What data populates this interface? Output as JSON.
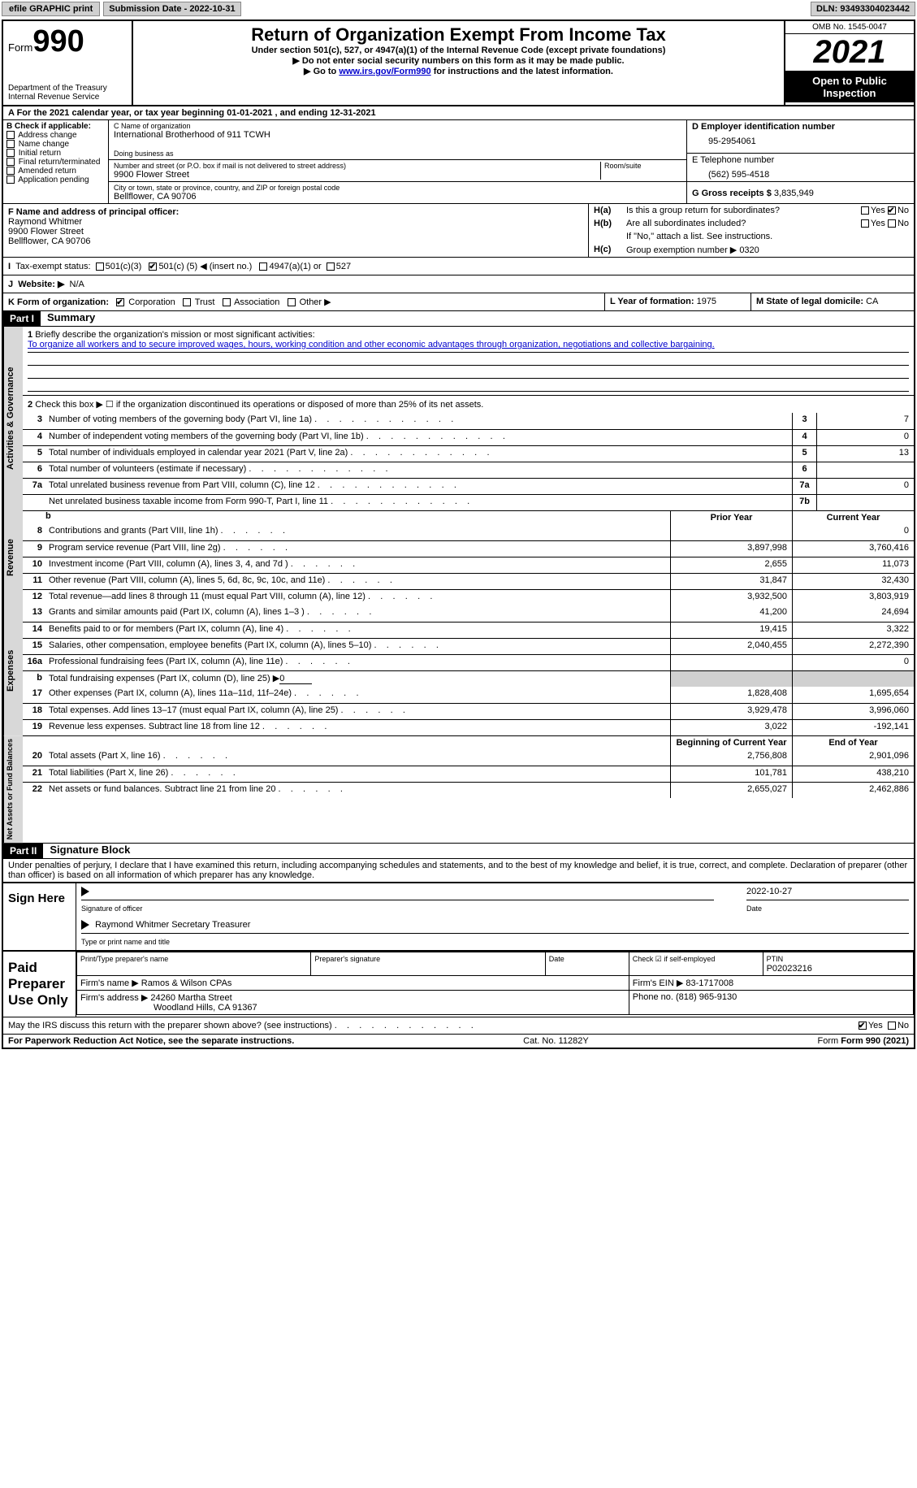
{
  "top": {
    "efile": "efile GRAPHIC print",
    "submission_label": "Submission Date - 2022-10-31",
    "dln_label": "DLN: 93493304023442"
  },
  "header": {
    "form_word": "Form",
    "form_num": "990",
    "dept": "Department of the Treasury",
    "irs": "Internal Revenue Service",
    "title": "Return of Organization Exempt From Income Tax",
    "sub": "Under section 501(c), 527, or 4947(a)(1) of the Internal Revenue Code (except private foundations)",
    "no_ssn": "▶ Do not enter social security numbers on this form as it may be made public.",
    "goto_pre": "▶ Go to ",
    "goto_link": "www.irs.gov/Form990",
    "goto_post": " for instructions and the latest information.",
    "omb": "OMB No. 1545-0047",
    "year": "2021",
    "open": "Open to Public Inspection"
  },
  "row_a": {
    "text": "A For the 2021 calendar year, or tax year beginning 01-01-2021    , and ending 12-31-2021"
  },
  "box_b": {
    "title": "B Check if applicable:",
    "opts": [
      "Address change",
      "Name change",
      "Initial return",
      "Final return/terminated",
      "Amended return",
      "Application pending"
    ]
  },
  "box_c": {
    "name_label": "C Name of organization",
    "name": "International Brotherhood of 911 TCWH",
    "dba_label": "Doing business as",
    "addr_label": "Number and street (or P.O. box if mail is not delivered to street address)",
    "room_label": "Room/suite",
    "addr": "9900 Flower Street",
    "city_label": "City or town, state or province, country, and ZIP or foreign postal code",
    "city": "Bellflower, CA  90706"
  },
  "box_d": {
    "ein_label": "D Employer identification number",
    "ein": "95-2954061",
    "phone_label": "E Telephone number",
    "phone": "(562) 595-4518",
    "gross_label": "G Gross receipts $",
    "gross": "3,835,949"
  },
  "box_f": {
    "label": "F  Name and address of principal officer:",
    "name": "Raymond Whitmer",
    "addr1": "9900 Flower Street",
    "addr2": "Bellflower, CA  90706"
  },
  "box_h": {
    "ha_label": "H(a)",
    "ha_text": "Is this a group return for subordinates?",
    "hb_label": "H(b)",
    "hb_text": "Are all subordinates included?",
    "hb_note": "If \"No,\" attach a list. See instructions.",
    "hc_label": "H(c)",
    "hc_text": "Group exemption number ▶",
    "hc_val": "0320",
    "yes": "Yes",
    "no": "No"
  },
  "tax_status": {
    "label": "Tax-exempt status:",
    "c3": "501(c)(3)",
    "c_pre": "501(c) (",
    "c_num": "5",
    "c_post": ") ◀ (insert no.)",
    "a1": "4947(a)(1) or",
    "s527": "527"
  },
  "row_j": {
    "label": "J",
    "text": "Website: ▶",
    "val": "N/A"
  },
  "row_k": {
    "label": "K Form of organization:",
    "corp": "Corporation",
    "trust": "Trust",
    "assoc": "Association",
    "other": "Other ▶"
  },
  "row_l": {
    "label": "L Year of formation:",
    "val": "1975"
  },
  "row_m": {
    "label": "M State of legal domicile:",
    "val": "CA"
  },
  "part1": {
    "tag": "Part I",
    "title": "Summary",
    "tab_gov": "Activities & Governance",
    "tab_rev": "Revenue",
    "tab_exp": "Expenses",
    "tab_net": "Net Assets or Fund Balances",
    "l1_label": "Briefly describe the organization's mission or most significant activities:",
    "l1_text": "To organize all workers and to secure improved wages, hours, working condition and other economic advantages through organization, negotiations and collective bargaining.",
    "l2": "Check this box ▶ ☐ if the organization discontinued its operations or disposed of more than 25% of its net assets.",
    "lines_gov": [
      {
        "n": "3",
        "d": "Number of voting members of the governing body (Part VI, line 1a)",
        "box": "3",
        "v": "7"
      },
      {
        "n": "4",
        "d": "Number of independent voting members of the governing body (Part VI, line 1b)",
        "box": "4",
        "v": "0"
      },
      {
        "n": "5",
        "d": "Total number of individuals employed in calendar year 2021 (Part V, line 2a)",
        "box": "5",
        "v": "13"
      },
      {
        "n": "6",
        "d": "Total number of volunteers (estimate if necessary)",
        "box": "6",
        "v": ""
      },
      {
        "n": "7a",
        "d": "Total unrelated business revenue from Part VIII, column (C), line 12",
        "box": "7a",
        "v": "0"
      },
      {
        "n": "",
        "d": "Net unrelated business taxable income from Form 990-T, Part I, line 11",
        "box": "7b",
        "v": ""
      }
    ],
    "col_prior": "Prior Year",
    "col_current": "Current Year",
    "lines_rev": [
      {
        "n": "8",
        "d": "Contributions and grants (Part VIII, line 1h)",
        "p": "",
        "c": "0"
      },
      {
        "n": "9",
        "d": "Program service revenue (Part VIII, line 2g)",
        "p": "3,897,998",
        "c": "3,760,416"
      },
      {
        "n": "10",
        "d": "Investment income (Part VIII, column (A), lines 3, 4, and 7d )",
        "p": "2,655",
        "c": "11,073"
      },
      {
        "n": "11",
        "d": "Other revenue (Part VIII, column (A), lines 5, 6d, 8c, 9c, 10c, and 11e)",
        "p": "31,847",
        "c": "32,430"
      },
      {
        "n": "12",
        "d": "Total revenue—add lines 8 through 11 (must equal Part VIII, column (A), line 12)",
        "p": "3,932,500",
        "c": "3,803,919"
      }
    ],
    "lines_exp": [
      {
        "n": "13",
        "d": "Grants and similar amounts paid (Part IX, column (A), lines 1–3 )",
        "p": "41,200",
        "c": "24,694"
      },
      {
        "n": "14",
        "d": "Benefits paid to or for members (Part IX, column (A), line 4)",
        "p": "19,415",
        "c": "3,322"
      },
      {
        "n": "15",
        "d": "Salaries, other compensation, employee benefits (Part IX, column (A), lines 5–10)",
        "p": "2,040,455",
        "c": "2,272,390"
      },
      {
        "n": "16a",
        "d": "Professional fundraising fees (Part IX, column (A), line 11e)",
        "p": "",
        "c": "0"
      }
    ],
    "line_b": {
      "n": "b",
      "d": "Total fundraising expenses (Part IX, column (D), line 25) ▶",
      "v": "0"
    },
    "lines_exp2": [
      {
        "n": "17",
        "d": "Other expenses (Part IX, column (A), lines 11a–11d, 11f–24e)",
        "p": "1,828,408",
        "c": "1,695,654"
      },
      {
        "n": "18",
        "d": "Total expenses. Add lines 13–17 (must equal Part IX, column (A), line 25)",
        "p": "3,929,478",
        "c": "3,996,060"
      },
      {
        "n": "19",
        "d": "Revenue less expenses. Subtract line 18 from line 12",
        "p": "3,022",
        "c": "-192,141"
      }
    ],
    "col_begin": "Beginning of Current Year",
    "col_end": "End of Year",
    "lines_net": [
      {
        "n": "20",
        "d": "Total assets (Part X, line 16)",
        "p": "2,756,808",
        "c": "2,901,096"
      },
      {
        "n": "21",
        "d": "Total liabilities (Part X, line 26)",
        "p": "101,781",
        "c": "438,210"
      },
      {
        "n": "22",
        "d": "Net assets or fund balances. Subtract line 21 from line 20",
        "p": "2,655,027",
        "c": "2,462,886"
      }
    ]
  },
  "part2": {
    "tag": "Part II",
    "title": "Signature Block",
    "decl": "Under penalties of perjury, I declare that I have examined this return, including accompanying schedules and statements, and to the best of my knowledge and belief, it is true, correct, and complete. Declaration of preparer (other than officer) is based on all information of which preparer has any knowledge.",
    "sign_here": "Sign Here",
    "sig_officer": "Signature of officer",
    "sig_date": "Date",
    "sig_date_val": "2022-10-27",
    "sig_name": "Raymond Whitmer  Secretary Treasurer",
    "sig_name_label": "Type or print name and title",
    "paid": "Paid Preparer Use Only",
    "prep_name_label": "Print/Type preparer's name",
    "prep_sig_label": "Preparer's signature",
    "prep_date_label": "Date",
    "check_self": "Check ☑ if self-employed",
    "ptin_label": "PTIN",
    "ptin": "P02023216",
    "firm_name_label": "Firm's name    ▶",
    "firm_name": "Ramos & Wilson CPAs",
    "firm_ein_label": "Firm's EIN ▶",
    "firm_ein": "83-1717008",
    "firm_addr_label": "Firm's address ▶",
    "firm_addr1": "24260 Martha Street",
    "firm_addr2": "Woodland Hills, CA  91367",
    "firm_phone_label": "Phone no.",
    "firm_phone": "(818) 965-9130",
    "discuss": "May the IRS discuss this return with the preparer shown above? (see instructions)",
    "yes": "Yes",
    "no": "No"
  },
  "footer": {
    "pra": "For Paperwork Reduction Act Notice, see the separate instructions.",
    "cat": "Cat. No. 11282Y",
    "form": "Form 990 (2021)"
  }
}
